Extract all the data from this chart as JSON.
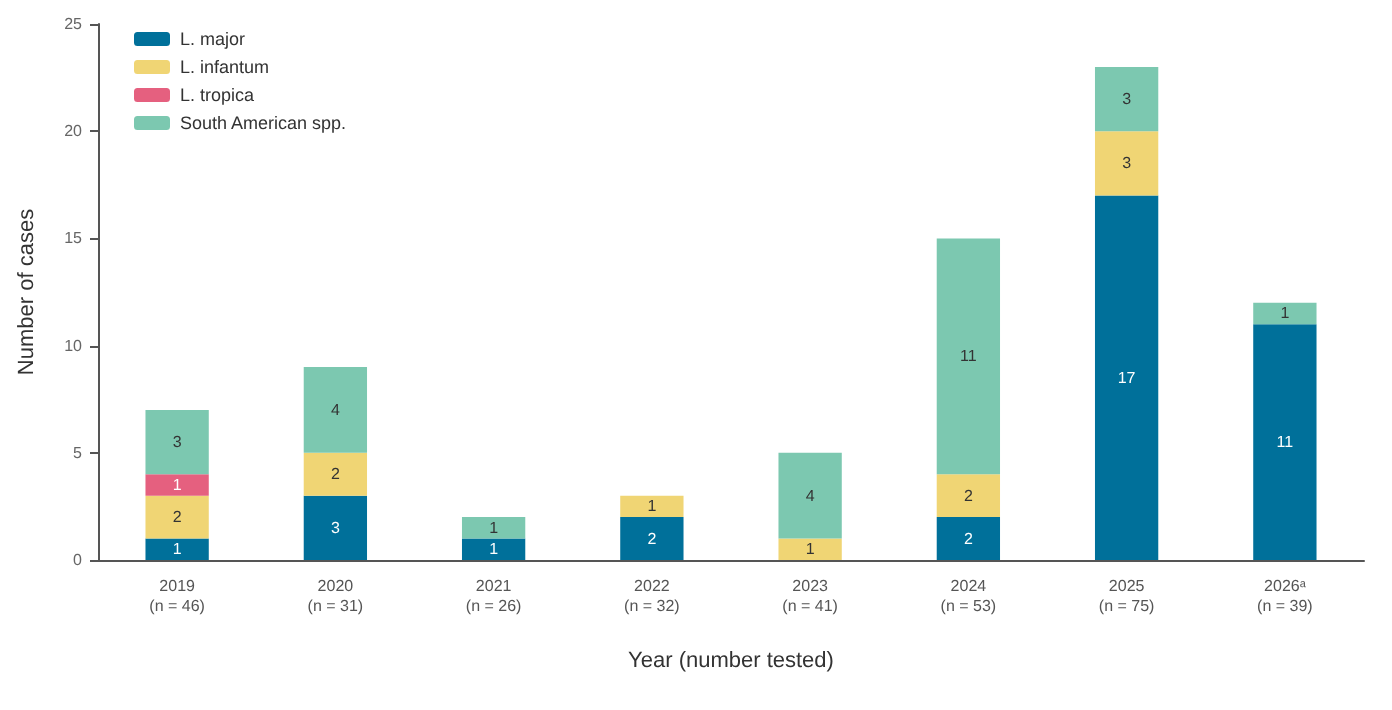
{
  "chart_data": {
    "type": "bar",
    "stacked": true,
    "xlabel": "Year (number tested)",
    "ylabel": "Number of cases",
    "categories": [
      "2019\n(n = 46)",
      "2020\n(n = 31)",
      "2021\n(n = 26)",
      "2022\n(n = 32)",
      "2023\n(n = 41)",
      "2024\n(n = 53)",
      "2025\n(n = 75)",
      "2026ᵃ\n(n = 39)"
    ],
    "series": [
      {
        "name": "L. major",
        "color": "#00709a",
        "values": [
          1,
          3,
          1,
          2,
          null,
          2,
          17,
          11
        ]
      },
      {
        "name": "L. infantum",
        "color": "#f0d574",
        "values": [
          2,
          2,
          null,
          1,
          1,
          2,
          3,
          null
        ]
      },
      {
        "name": "L. tropica",
        "color": "#e5607f",
        "values": [
          1,
          null,
          null,
          null,
          null,
          null,
          null,
          null
        ]
      },
      {
        "name": "South American spp.",
        "color": "#7cc8b0",
        "values": [
          3,
          4,
          1,
          null,
          4,
          11,
          3,
          1
        ]
      }
    ],
    "ylim": [
      0,
      25
    ],
    "yticks": [
      0,
      5,
      10,
      15,
      20,
      25
    ],
    "grid": false,
    "legend": "top left",
    "data_labels": true
  }
}
